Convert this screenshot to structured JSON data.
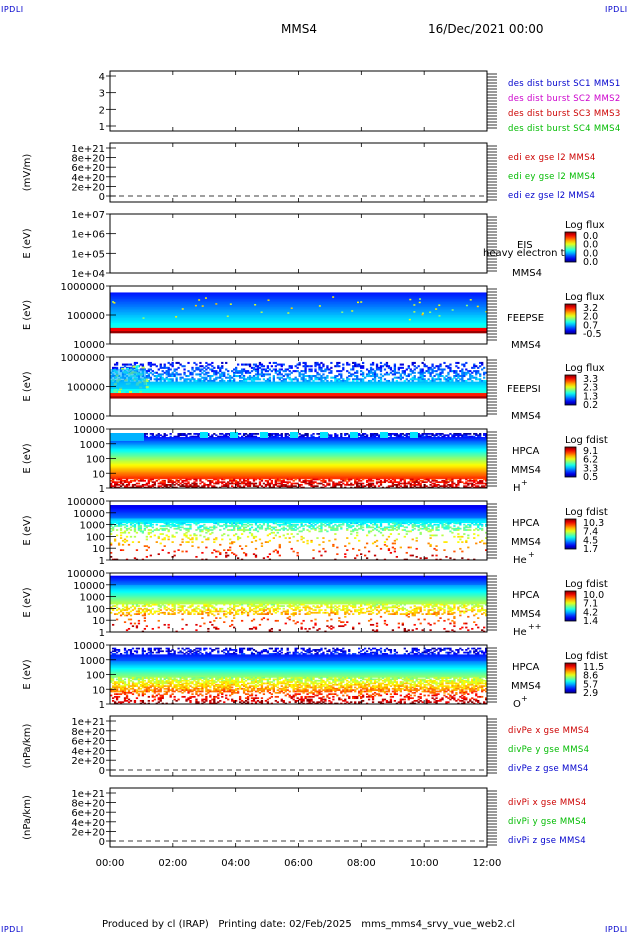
{
  "header": {
    "corner_label": "IPDLI",
    "title": "MMS4",
    "date": "16/Dec/2021 00:00"
  },
  "footer": {
    "text": "Produced by cl (IRAP)   Printing date: 02/Feb/2025   mms_mms4_srvy_vue_web2.cl"
  },
  "time_axis": {
    "ticks": [
      "00:00",
      "02:00",
      "04:00",
      "06:00",
      "08:00",
      "10:00",
      "12:00"
    ]
  },
  "colors": {
    "blue": "#0000cc",
    "magenta": "#cc00cc",
    "red": "#cc0000",
    "green": "#00bb00"
  },
  "chart_data": [
    {
      "type": "line",
      "panel": "des-dist-burst",
      "ylabel": "",
      "yticks": [
        "4",
        "3",
        "2",
        "1"
      ],
      "series": [
        {
          "name": "des dist burst SC1 MMS1",
          "color": "#0000cc",
          "values": []
        },
        {
          "name": "des dist burst SC2 MMS2",
          "color": "#cc00cc",
          "values": []
        },
        {
          "name": "des dist burst SC3 MMS3",
          "color": "#cc0000",
          "values": []
        },
        {
          "name": "des dist burst SC4 MMS4",
          "color": "#00bb00",
          "values": []
        }
      ]
    },
    {
      "type": "line",
      "panel": "edi-e",
      "ylabel": "(mV/m)",
      "yticks": [
        "1e+21",
        "8e+20",
        "6e+20",
        "4e+20",
        "2e+20",
        "0"
      ],
      "series": [
        {
          "name": "edi ex gse l2 MMS4",
          "color": "#cc0000",
          "values": []
        },
        {
          "name": "edi ey gse l2 MMS4",
          "color": "#00bb00",
          "values": []
        },
        {
          "name": "edi ez gse l2 MMS4",
          "color": "#0000cc",
          "values": []
        }
      ]
    },
    {
      "type": "heatmap",
      "panel": "eis",
      "ylabel": "E (eV)",
      "yticks": [
        "1e+07",
        "1e+06",
        "1e+05",
        "1e+04"
      ],
      "instrument": "EIS",
      "species": "heavy electron to",
      "spacecraft": "MMS4",
      "colorbar_title": "Log flux",
      "colorbar_ticks": [
        "0.0",
        "0.0",
        "0.0",
        "0.0"
      ]
    },
    {
      "type": "heatmap",
      "panel": "feeps-e",
      "ylabel": "E (eV)",
      "yticks": [
        "1000000",
        "100000",
        "10000"
      ],
      "instrument": "FEEPSE",
      "spacecraft": "MMS4",
      "colorbar_title": "Log flux",
      "colorbar_ticks": [
        "3.2",
        "2.0",
        "0.7",
        "-0.5"
      ]
    },
    {
      "type": "heatmap",
      "panel": "feeps-i",
      "ylabel": "E (eV)",
      "yticks": [
        "1000000",
        "100000",
        "10000"
      ],
      "instrument": "FEEPSI",
      "spacecraft": "MMS4",
      "colorbar_title": "Log flux",
      "colorbar_ticks": [
        "3.3",
        "2.3",
        "1.3",
        "0.2"
      ]
    },
    {
      "type": "heatmap",
      "panel": "hpca-h",
      "ylabel": "E (eV)",
      "yticks": [
        "10000",
        "1000",
        "100",
        "10",
        "1"
      ],
      "instrument": "HPCA",
      "spacecraft": "MMS4",
      "species": "H",
      "species_sup": "+",
      "colorbar_title": "Log fdist",
      "colorbar_ticks": [
        "9.1",
        "6.2",
        "3.3",
        "0.5"
      ]
    },
    {
      "type": "heatmap",
      "panel": "hpca-he",
      "ylabel": "E (eV)",
      "yticks": [
        "100000",
        "10000",
        "1000",
        "100",
        "10",
        "1"
      ],
      "instrument": "HPCA",
      "spacecraft": "MMS4",
      "species": "He",
      "species_sup": "+",
      "colorbar_title": "Log fdist",
      "colorbar_ticks": [
        "10.3",
        "7.4",
        "4.5",
        "1.7"
      ]
    },
    {
      "type": "heatmap",
      "panel": "hpca-he2",
      "ylabel": "E (eV)",
      "yticks": [
        "100000",
        "10000",
        "1000",
        "100",
        "10",
        "1"
      ],
      "instrument": "HPCA",
      "spacecraft": "MMS4",
      "species": "He",
      "species_sup": "++",
      "colorbar_title": "Log fdist",
      "colorbar_ticks": [
        "10.0",
        "7.1",
        "4.2",
        "1.4"
      ]
    },
    {
      "type": "heatmap",
      "panel": "hpca-o",
      "ylabel": "E (eV)",
      "yticks": [
        "10000",
        "1000",
        "100",
        "10",
        "1"
      ],
      "instrument": "HPCA",
      "spacecraft": "MMS4",
      "species": "O",
      "species_sup": "+",
      "colorbar_title": "Log fdist",
      "colorbar_ticks": [
        "11.5",
        "8.6",
        "5.7",
        "2.9"
      ]
    },
    {
      "type": "line",
      "panel": "divpe",
      "ylabel": "(nPa/km)",
      "yticks": [
        "1e+21",
        "8e+20",
        "6e+20",
        "4e+20",
        "2e+20",
        "0"
      ],
      "series": [
        {
          "name": "divPe x gse MMS4",
          "color": "#cc0000",
          "values": []
        },
        {
          "name": "divPe y gse MMS4",
          "color": "#00bb00",
          "values": []
        },
        {
          "name": "divPe z gse MMS4",
          "color": "#0000cc",
          "values": []
        }
      ]
    },
    {
      "type": "line",
      "panel": "divpi",
      "ylabel": "(nPa/km)",
      "yticks": [
        "1e+21",
        "8e+20",
        "6e+20",
        "4e+20",
        "2e+20",
        "0"
      ],
      "series": [
        {
          "name": "divPi x gse MMS4",
          "color": "#cc0000",
          "values": []
        },
        {
          "name": "divPi y gse MMS4",
          "color": "#00bb00",
          "values": []
        },
        {
          "name": "divPi z gse MMS4",
          "color": "#0000cc",
          "values": []
        }
      ]
    }
  ]
}
